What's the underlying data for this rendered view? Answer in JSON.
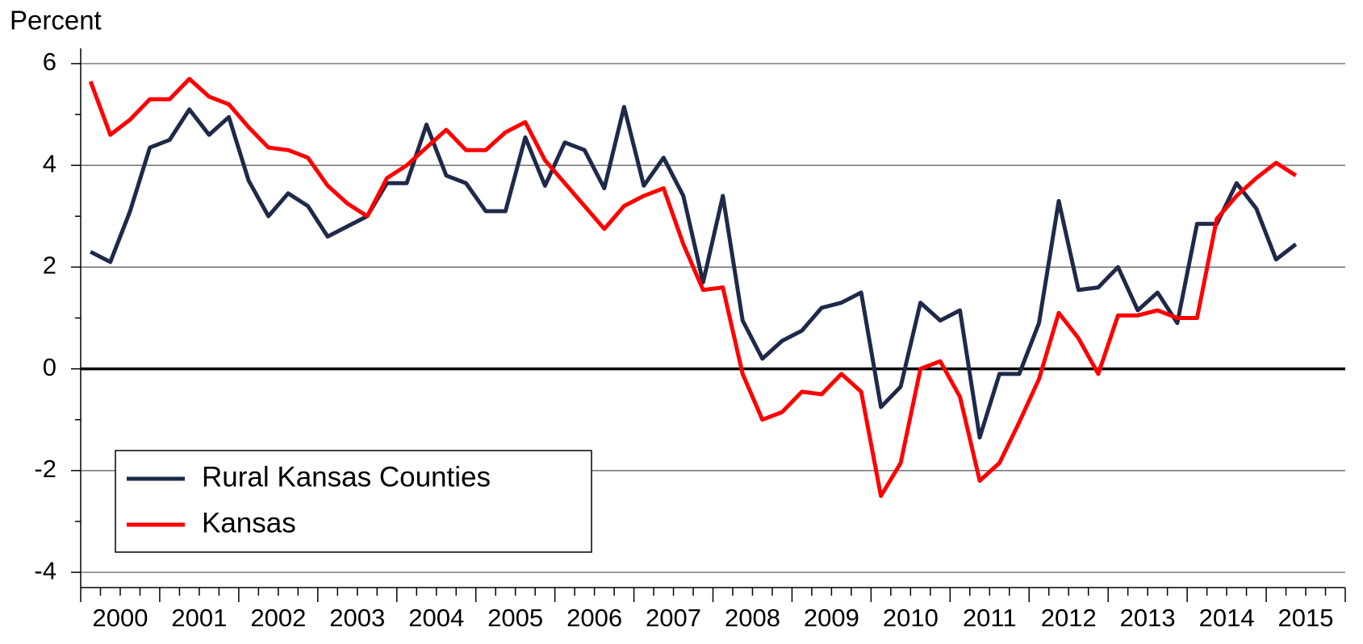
{
  "chart_data": {
    "type": "line",
    "y_label": "Percent",
    "categories": [
      "2000",
      null,
      null,
      null,
      "2001",
      null,
      null,
      null,
      "2002",
      null,
      null,
      null,
      "2003",
      null,
      null,
      null,
      "2004",
      null,
      null,
      null,
      "2005",
      null,
      null,
      null,
      "2006",
      null,
      null,
      null,
      "2007",
      null,
      null,
      null,
      "2008",
      null,
      null,
      null,
      "2009",
      null,
      null,
      null,
      "2010",
      null,
      null,
      null,
      "2011",
      null,
      null,
      null,
      "2012",
      null,
      null,
      null,
      "2013",
      null,
      null,
      null,
      "2014",
      null,
      null,
      null,
      "2015",
      null
    ],
    "series": [
      {
        "name": "Rural Kansas Counties",
        "color": "#1f2a4a",
        "values": [
          2.3,
          2.1,
          3.1,
          4.35,
          4.5,
          5.1,
          4.6,
          4.95,
          3.7,
          3.0,
          3.45,
          3.2,
          2.6,
          2.8,
          3.0,
          3.65,
          3.65,
          4.8,
          3.8,
          3.65,
          3.1,
          3.1,
          4.55,
          3.6,
          4.45,
          4.3,
          3.55,
          5.15,
          3.6,
          4.15,
          3.4,
          1.7,
          3.4,
          0.95,
          0.2,
          0.55,
          0.75,
          1.2,
          1.3,
          1.5,
          -0.75,
          -0.35,
          1.3,
          0.95,
          1.15,
          -1.35,
          -0.1,
          -0.1,
          0.9,
          3.3,
          1.55,
          1.6,
          2.0,
          1.15,
          1.5,
          0.9,
          2.85,
          2.85,
          3.65,
          3.15,
          2.15,
          2.45
        ]
      },
      {
        "name": "Kansas",
        "color": "#ff0000",
        "values": [
          5.65,
          4.6,
          4.9,
          5.3,
          5.3,
          5.7,
          5.35,
          5.2,
          4.75,
          4.35,
          4.3,
          4.15,
          3.6,
          3.25,
          3.0,
          3.75,
          4.0,
          4.35,
          4.7,
          4.3,
          4.3,
          4.65,
          4.85,
          4.1,
          3.65,
          3.2,
          2.75,
          3.2,
          3.4,
          3.55,
          2.45,
          1.55,
          1.6,
          -0.1,
          -1.0,
          -0.85,
          -0.45,
          -0.5,
          -0.1,
          -0.45,
          -2.5,
          -1.85,
          0.0,
          0.15,
          -0.55,
          -2.2,
          -1.85,
          -1.05,
          -0.2,
          1.1,
          0.6,
          -0.1,
          1.05,
          1.05,
          1.15,
          1.0,
          1.0,
          2.95,
          3.4,
          3.75,
          4.05,
          3.8
        ]
      }
    ],
    "ylim": [
      -4.3,
      6.3
    ],
    "yticks": [
      -4,
      -2,
      0,
      2,
      4,
      6
    ],
    "grid": true,
    "legend": "lower left"
  }
}
